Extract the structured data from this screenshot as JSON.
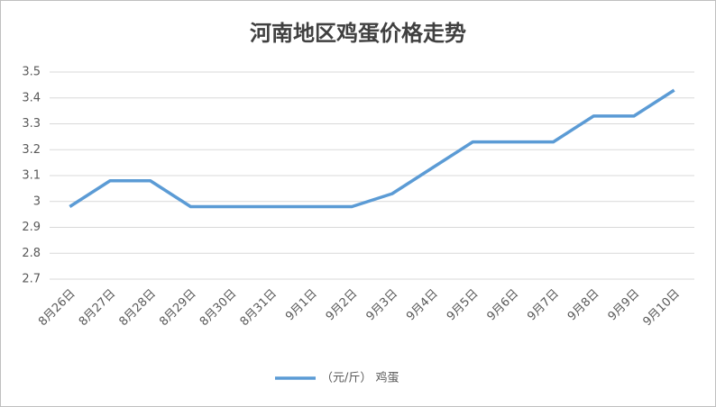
{
  "chart_data": {
    "type": "line",
    "title": "河南地区鸡蛋价格走势",
    "categories": [
      "8月26日",
      "8月27日",
      "8月28日",
      "8月29日",
      "8月30日",
      "8月31日",
      "9月1日",
      "9月2日",
      "9月3日",
      "9月4日",
      "9月5日",
      "9月6日",
      "9月7日",
      "9月8日",
      "9月9日",
      "9月10日"
    ],
    "series": [
      {
        "name": "（元/斤） 鸡蛋",
        "color": "#5b9bd5",
        "values": [
          2.98,
          3.08,
          3.08,
          2.98,
          2.98,
          2.98,
          2.98,
          2.98,
          3.03,
          3.13,
          3.23,
          3.23,
          3.23,
          3.33,
          3.33,
          3.43
        ]
      }
    ],
    "ylim": [
      2.7,
      3.5
    ],
    "yticks": [
      2.7,
      2.8,
      2.9,
      3,
      3.1,
      3.2,
      3.3,
      3.4,
      3.5
    ],
    "grid": true,
    "legend": "bottom"
  }
}
